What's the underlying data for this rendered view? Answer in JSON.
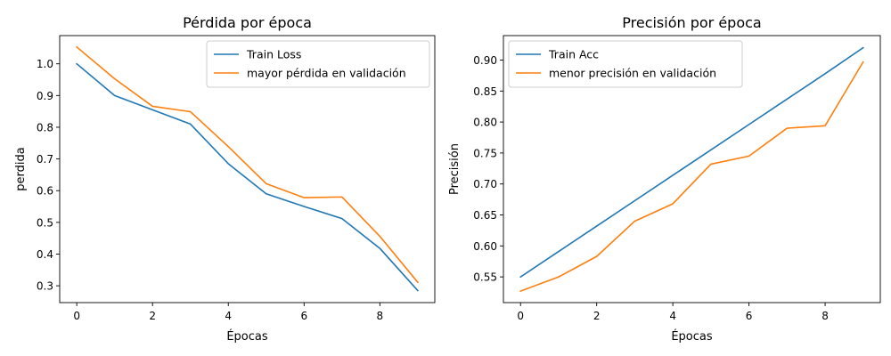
{
  "chart_data": [
    {
      "type": "line",
      "title": "Pérdida por época",
      "xlabel": "Épocas",
      "ylabel": "perdida",
      "xlim": [
        -0.45,
        9.45
      ],
      "ylim": [
        0.247,
        1.089
      ],
      "xticks": [
        0,
        2,
        4,
        6,
        8
      ],
      "yticks": [
        0.3,
        0.4,
        0.5,
        0.6,
        0.7,
        0.8,
        0.9,
        1.0
      ],
      "grid": false,
      "legend_position": "top-right",
      "x": [
        0,
        1,
        2,
        3,
        4,
        5,
        6,
        7,
        8,
        9
      ],
      "series": [
        {
          "name": "Train Loss",
          "color": "#1f77b4",
          "values": [
            1.0,
            0.9,
            0.855,
            0.81,
            0.685,
            0.59,
            0.55,
            0.512,
            0.418,
            0.285
          ]
        },
        {
          "name": "mayor pérdida en validación",
          "color": "#ff7f0e",
          "values": [
            1.053,
            0.953,
            0.866,
            0.849,
            0.739,
            0.622,
            0.578,
            0.58,
            0.456,
            0.311
          ]
        }
      ]
    },
    {
      "type": "line",
      "title": "Precisión por época",
      "xlabel": "Épocas",
      "ylabel": "Precisión",
      "xlim": [
        -0.45,
        9.45
      ],
      "ylim": [
        0.5085,
        0.9395
      ],
      "xticks": [
        0,
        2,
        4,
        6,
        8
      ],
      "yticks": [
        0.55,
        0.6,
        0.65,
        0.7,
        0.75,
        0.8,
        0.85,
        0.9
      ],
      "grid": false,
      "legend_position": "top-left",
      "x": [
        0,
        1,
        2,
        3,
        4,
        5,
        6,
        7,
        8,
        9
      ],
      "series": [
        {
          "name": "Train Acc",
          "color": "#1f77b4",
          "values": [
            0.55,
            0.591,
            0.632,
            0.673,
            0.714,
            0.755,
            0.796,
            0.837,
            0.878,
            0.92
          ]
        },
        {
          "name": "menor precisión en validación",
          "color": "#ff7f0e",
          "values": [
            0.527,
            0.55,
            0.583,
            0.64,
            0.668,
            0.732,
            0.745,
            0.79,
            0.794,
            0.897
          ]
        }
      ]
    }
  ]
}
